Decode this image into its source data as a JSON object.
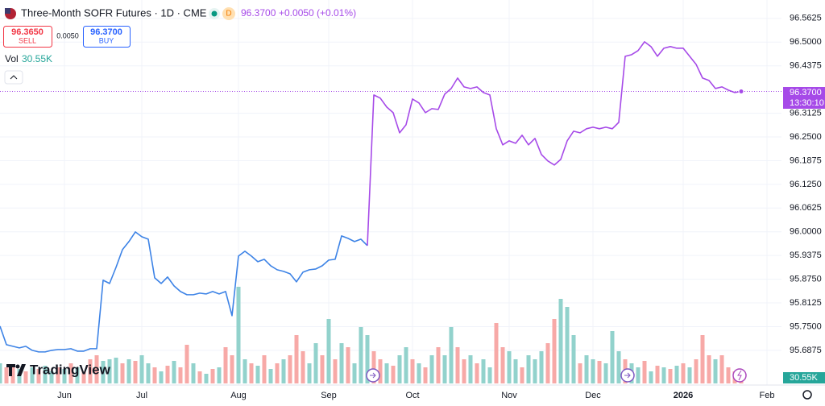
{
  "header": {
    "title": "Three-Month SOFR Futures · 1D · CME",
    "badge": "D",
    "price": "96.3700",
    "change": "+0.0050 (+0.01%)"
  },
  "trade": {
    "sell_price": "96.3650",
    "sell": "SELL",
    "spread": "0.0050",
    "buy_price": "96.3700",
    "buy": "BUY"
  },
  "logo": "TradingView",
  "chart_data": {
    "type": "line",
    "categories": [
      null,
      null,
      null,
      null,
      null,
      null,
      null,
      null,
      null,
      null,
      "Jun",
      null,
      null,
      null,
      null,
      null,
      null,
      null,
      null,
      null,
      null,
      null,
      "Jul",
      null,
      null,
      null,
      null,
      null,
      null,
      null,
      null,
      null,
      null,
      null,
      null,
      null,
      null,
      "Aug",
      null,
      null,
      null,
      null,
      null,
      null,
      null,
      null,
      null,
      null,
      null,
      null,
      null,
      "Sep",
      null,
      null,
      null,
      null,
      null,
      null,
      null,
      null,
      null,
      null,
      null,
      null,
      "Oct",
      null,
      null,
      null,
      null,
      null,
      null,
      null,
      null,
      null,
      null,
      null,
      null,
      null,
      null,
      "Nov",
      null,
      null,
      null,
      null,
      null,
      null,
      null,
      null,
      null,
      null,
      null,
      null,
      "Dec",
      null,
      null,
      null,
      null,
      null,
      null,
      null,
      null,
      null,
      null,
      null,
      null,
      null,
      "2026",
      null,
      null,
      null,
      null,
      null,
      null,
      null,
      null,
      null,
      null,
      null,
      null,
      "Feb"
    ],
    "series": [
      {
        "color": "#3d83e6",
        "values": [
          95.7512,
          95.7024,
          95.6982,
          95.6939,
          95.6982,
          95.6875,
          95.6833,
          95.6833,
          95.6875,
          95.6897,
          95.6897,
          95.6918,
          95.6854,
          95.6854,
          95.6918,
          95.6918,
          95.8723,
          95.8638,
          95.9063,
          95.953,
          95.9742,
          95.9997,
          95.987,
          95.9806,
          95.8787,
          95.8638,
          95.8808,
          95.8574,
          95.8426,
          95.8341,
          95.8341,
          95.8383,
          95.8362,
          95.8426,
          95.8362,
          95.8426,
          95.7789,
          95.936,
          95.9488,
          95.936,
          95.9211,
          95.9275,
          95.9105,
          95.8999,
          95.8957,
          95.8893,
          95.8681,
          95.8935,
          95.8999,
          95.902,
          95.9105,
          95.9254,
          95.9275,
          95.9891,
          95.9827,
          95.9742,
          95.9806,
          95.9636,
          null,
          null,
          null,
          null,
          null,
          null,
          null,
          null,
          null,
          null,
          null,
          null,
          null,
          null,
          null,
          null,
          null,
          null,
          null,
          null,
          null,
          null,
          null,
          null,
          null,
          null,
          null,
          null,
          null,
          null,
          null,
          null,
          null,
          null,
          null,
          null,
          null,
          null,
          null,
          null,
          null,
          null,
          null,
          null,
          null,
          null,
          null,
          null,
          null,
          null,
          null,
          null,
          null,
          null,
          null,
          null,
          null,
          null,
          null,
          null,
          null,
          null
        ]
      },
      {
        "color": "#a64ae8",
        "values": [
          null,
          null,
          null,
          null,
          null,
          null,
          null,
          null,
          null,
          null,
          null,
          null,
          null,
          null,
          null,
          null,
          null,
          null,
          null,
          null,
          null,
          null,
          null,
          null,
          null,
          null,
          null,
          null,
          null,
          null,
          null,
          null,
          null,
          null,
          null,
          null,
          null,
          null,
          null,
          null,
          null,
          null,
          null,
          null,
          null,
          null,
          null,
          null,
          null,
          null,
          null,
          null,
          null,
          null,
          null,
          null,
          null,
          95.9636,
          96.3607,
          96.3523,
          96.3289,
          96.314,
          96.2609,
          96.2822,
          96.3501,
          96.3395,
          96.314,
          96.3246,
          96.3225,
          96.3629,
          96.3777,
          96.4053,
          96.382,
          96.3777,
          96.382,
          96.3671,
          96.3607,
          96.2716,
          96.2291,
          96.2397,
          96.2333,
          96.2546,
          96.2291,
          96.2461,
          96.2036,
          96.1866,
          96.176,
          96.1909,
          96.2397,
          96.2652,
          96.2609,
          96.2716,
          96.2758,
          96.2716,
          96.2758,
          96.2716,
          96.2885,
          96.4627,
          96.4669,
          96.4776,
          96.5009,
          96.4882,
          96.4627,
          96.4839,
          96.4882,
          96.4839,
          96.4839,
          96.4627,
          96.4415,
          96.4053,
          96.399,
          96.3777,
          96.382,
          96.3735,
          96.3671,
          96.37,
          null,
          null,
          null,
          null
        ]
      }
    ],
    "last_label": {
      "price": "96.3700",
      "time": "13:30:10"
    },
    "volume": {
      "label": "Vol",
      "last_label": "30.55K",
      "values": [
        75,
        60,
        66,
        54,
        45,
        60,
        54,
        66,
        45,
        60,
        54,
        75,
        60,
        45,
        90,
        105,
        84,
        90,
        96,
        75,
        90,
        84,
        105,
        75,
        60,
        45,
        66,
        84,
        60,
        144,
        75,
        45,
        36,
        54,
        60,
        135,
        105,
        360,
        90,
        75,
        66,
        105,
        54,
        75,
        90,
        105,
        180,
        120,
        75,
        150,
        105,
        240,
        90,
        150,
        135,
        75,
        210,
        180,
        120,
        90,
        75,
        66,
        105,
        135,
        90,
        75,
        60,
        105,
        135,
        105,
        210,
        135,
        90,
        105,
        75,
        90,
        60,
        225,
        135,
        120,
        90,
        60,
        105,
        90,
        120,
        150,
        240,
        315,
        285,
        180,
        75,
        105,
        90,
        84,
        75,
        195,
        120,
        90,
        75,
        60,
        84,
        45,
        66,
        60,
        54,
        66,
        75,
        60,
        90,
        180,
        105,
        90,
        105,
        60,
        45,
        30.55,
        null,
        null,
        null,
        null
      ],
      "colors": [
        "#92d2cc",
        "#f7a9a7",
        "#f7a9a7",
        "#92d2cc",
        "#f7a9a7",
        "#92d2cc",
        "#f7a9a7",
        "#92d2cc",
        "#92d2cc",
        "#f7a9a7",
        "#92d2cc",
        "#f7a9a7",
        "#92d2cc",
        "#f7a9a7",
        "#f7a9a7",
        "#f7a9a7",
        "#92d2cc",
        "#92d2cc",
        "#92d2cc",
        "#f7a9a7",
        "#92d2cc",
        "#f7a9a7",
        "#92d2cc",
        "#92d2cc",
        "#f7a9a7",
        "#92d2cc",
        "#f7a9a7",
        "#92d2cc",
        "#f7a9a7",
        "#f7a9a7",
        "#92d2cc",
        "#f7a9a7",
        "#92d2cc",
        "#f7a9a7",
        "#92d2cc",
        "#f7a9a7",
        "#f7a9a7",
        "#92d2cc",
        "#92d2cc",
        "#f7a9a7",
        "#92d2cc",
        "#f7a9a7",
        "#92d2cc",
        "#f7a9a7",
        "#92d2cc",
        "#f7a9a7",
        "#f7a9a7",
        "#f7a9a7",
        "#92d2cc",
        "#92d2cc",
        "#f7a9a7",
        "#92d2cc",
        "#f7a9a7",
        "#92d2cc",
        "#f7a9a7",
        "#92d2cc",
        "#92d2cc",
        "#92d2cc",
        "#f7a9a7",
        "#f7a9a7",
        "#92d2cc",
        "#f7a9a7",
        "#92d2cc",
        "#92d2cc",
        "#f7a9a7",
        "#92d2cc",
        "#f7a9a7",
        "#92d2cc",
        "#f7a9a7",
        "#92d2cc",
        "#92d2cc",
        "#f7a9a7",
        "#f7a9a7",
        "#92d2cc",
        "#f7a9a7",
        "#92d2cc",
        "#92d2cc",
        "#f7a9a7",
        "#f7a9a7",
        "#92d2cc",
        "#92d2cc",
        "#f7a9a7",
        "#92d2cc",
        "#92d2cc",
        "#92d2cc",
        "#f7a9a7",
        "#f7a9a7",
        "#92d2cc",
        "#92d2cc",
        "#92d2cc",
        "#f7a9a7",
        "#92d2cc",
        "#92d2cc",
        "#f7a9a7",
        "#92d2cc",
        "#92d2cc",
        "#92d2cc",
        "#f7a9a7",
        "#92d2cc",
        "#92d2cc",
        "#f7a9a7",
        "#92d2cc",
        "#f7a9a7",
        "#92d2cc",
        "#f7a9a7",
        "#92d2cc",
        "#f7a9a7",
        "#92d2cc",
        "#f7a9a7",
        "#f7a9a7",
        "#f7a9a7",
        "#92d2cc",
        "#f7a9a7",
        "#f7a9a7",
        "#f7a9a7",
        "#f7a9a7",
        null,
        null,
        null,
        null
      ]
    },
    "ylim": [
      95.596,
      96.611
    ],
    "yticks": [
      {
        "value": 96.5625,
        "label": "96.5625"
      },
      {
        "value": 96.5,
        "label": "96.5000"
      },
      {
        "value": 96.4375,
        "label": "96.4375"
      },
      {
        "value": 96.3125,
        "label": "96.3125"
      },
      {
        "value": 96.25,
        "label": "96.2500"
      },
      {
        "value": 96.1875,
        "label": "96.1875"
      },
      {
        "value": 96.125,
        "label": "96.1250"
      },
      {
        "value": 96.0625,
        "label": "96.0625"
      },
      {
        "value": 96.0,
        "label": "96.0000"
      },
      {
        "value": 95.9375,
        "label": "95.9375"
      },
      {
        "value": 95.875,
        "label": "95.8750"
      },
      {
        "value": 95.8125,
        "label": "95.8125"
      },
      {
        "value": 95.75,
        "label": "95.7500"
      },
      {
        "value": 95.6875,
        "label": "95.6875"
      }
    ],
    "grid": true
  }
}
